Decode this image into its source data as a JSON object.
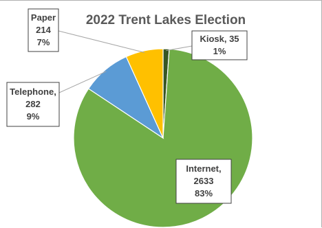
{
  "chart_data": {
    "type": "pie",
    "title": "2022 Trent Lakes Election",
    "slices": [
      {
        "label": "Internet",
        "value": 2633,
        "percent": "83%",
        "color": "#70ad47",
        "label_lines": [
          "Internet,",
          "2633",
          "83%"
        ]
      },
      {
        "label": "Telephone",
        "value": 282,
        "percent": "9%",
        "color": "#5b9bd5",
        "label_lines": [
          "Telephone,",
          "282",
          "9%"
        ]
      },
      {
        "label": "Paper",
        "value": 214,
        "percent": "7%",
        "color": "#ffc000",
        "label_lines": [
          "Paper",
          "214",
          "7%"
        ]
      },
      {
        "label": "Kiosk",
        "value": 35,
        "percent": "1%",
        "color": "#375623",
        "label_lines": [
          "Kiosk, 35",
          "1%"
        ]
      }
    ],
    "legend": "none",
    "data_labels": "callout boxes"
  }
}
